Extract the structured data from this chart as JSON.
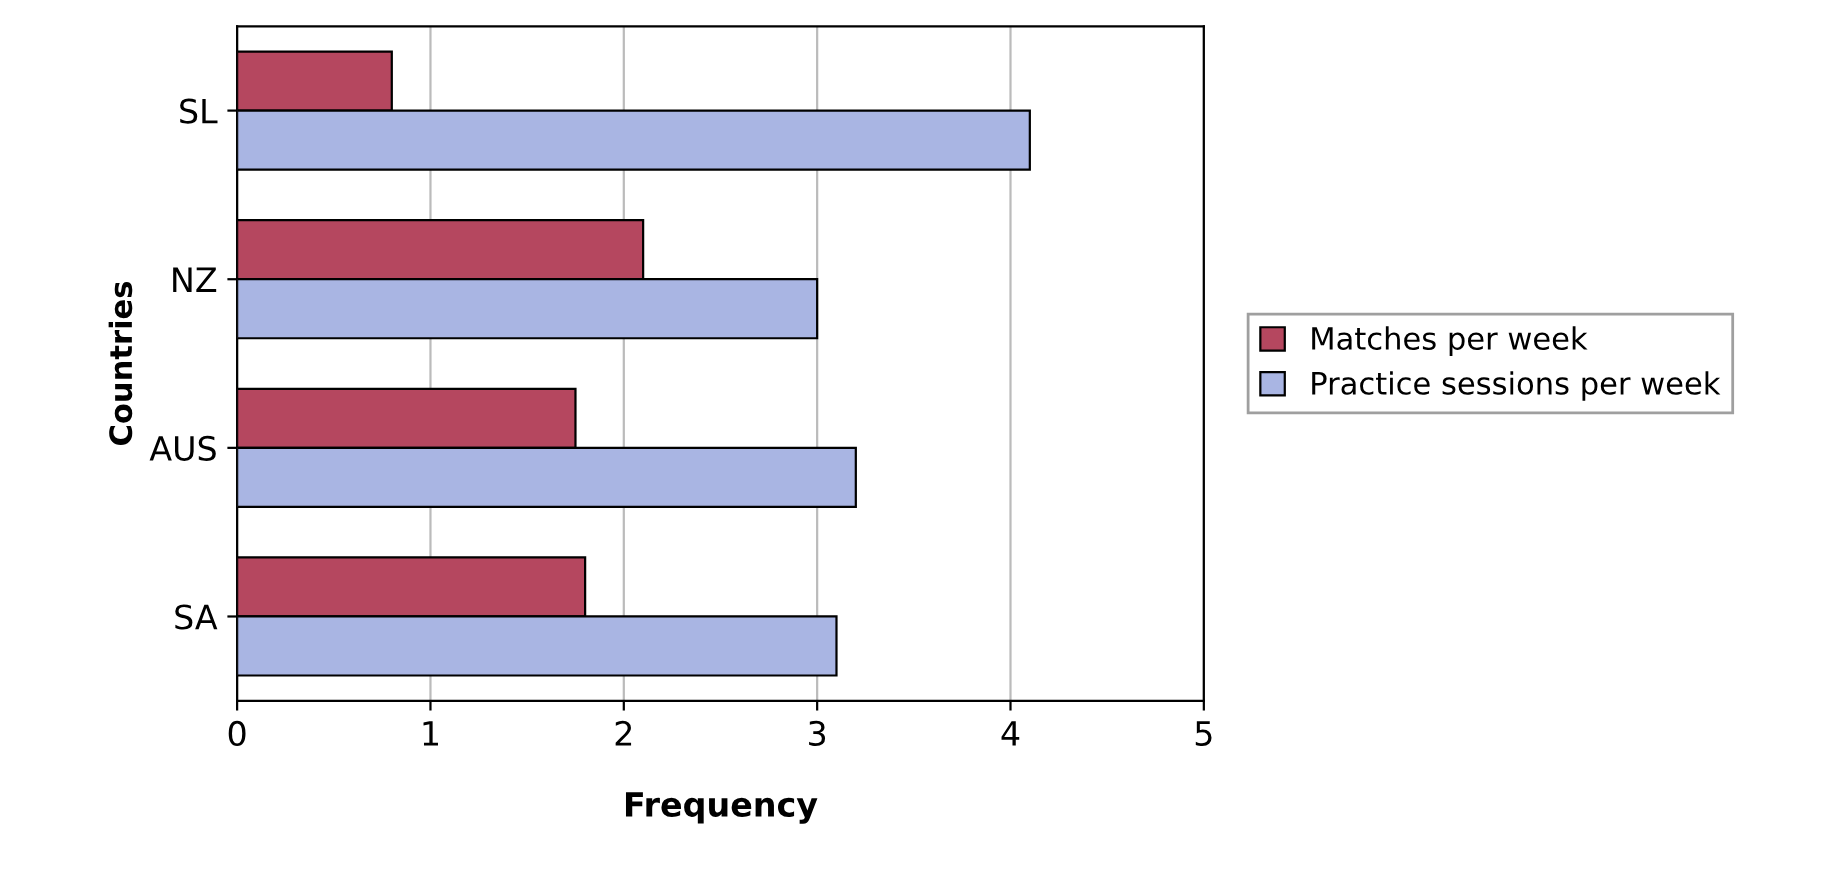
{
  "chart_data": {
    "type": "bar",
    "orientation": "horizontal",
    "xlabel": "Frequency",
    "ylabel": "Countries",
    "categories": [
      "SL",
      "NZ",
      "AUS",
      "SA"
    ],
    "series": [
      {
        "name": "Matches per week",
        "color": "#b5475f",
        "values": [
          0.8,
          2.1,
          1.75,
          1.8
        ]
      },
      {
        "name": "Practice sessions per week",
        "color": "#a9b5e3",
        "values": [
          4.1,
          3.0,
          3.2,
          3.1
        ]
      }
    ],
    "xlim": [
      0,
      5
    ],
    "xticks": [
      0,
      1,
      2,
      3,
      4,
      5
    ],
    "grid": "x",
    "legend": "right"
  }
}
